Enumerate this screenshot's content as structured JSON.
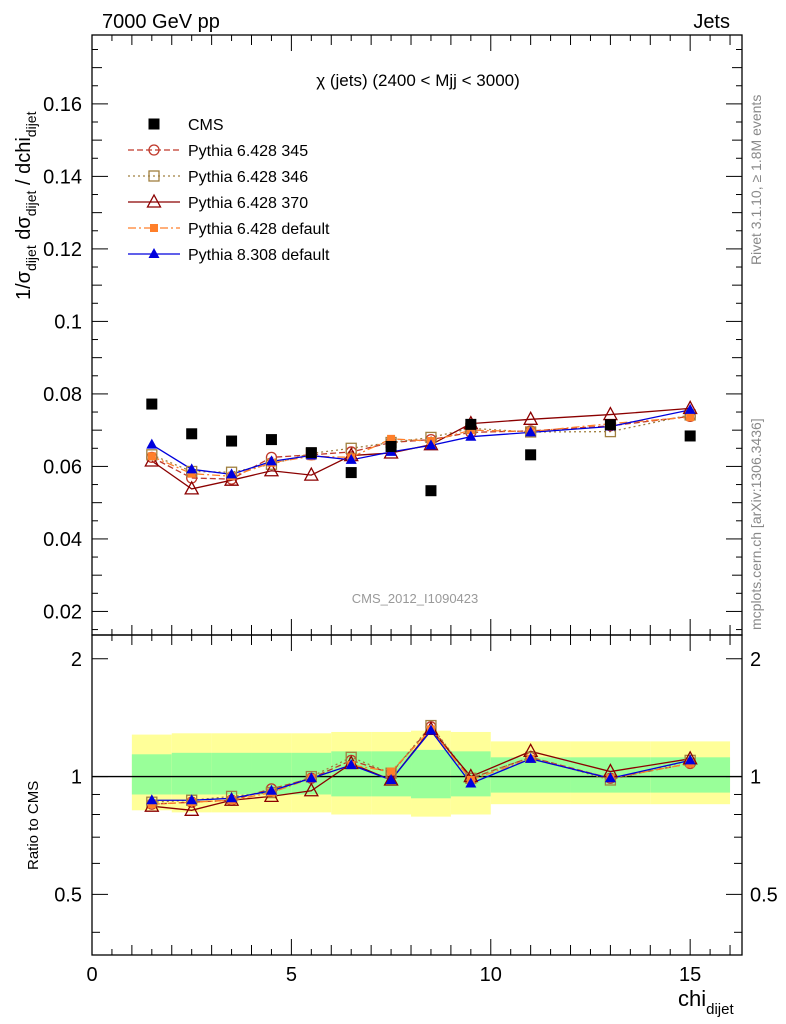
{
  "header": {
    "left": "7000 GeV pp",
    "right": "Jets"
  },
  "side_labels": {
    "rivet": "Rivet 3.1.10, ≥ 1.8M events",
    "mcplots": "mcplots.cern.ch [arXiv:1306.3436]"
  },
  "watermark": "CMS_2012_I1090423",
  "colors": {
    "cms": "#000000",
    "py345": "#c0392b",
    "py346": "#a08040",
    "py370": "#8b0000",
    "pydef": "#ff7f2a",
    "py8": "#0000dd",
    "band_inner": "#99ff99",
    "band_outer": "#ffff99"
  },
  "chart_data": [
    {
      "type": "line",
      "title": "χ (jets) (2400 < Mjj < 3000)",
      "xlabel": "chi",
      "xlabel_sub": "dijet",
      "ylabel": "1/σ_dijet dσ_dijet / dchi_dijet",
      "xlim": [
        0,
        16.3
      ],
      "ylim": [
        0.0135,
        0.179
      ],
      "yticks": [
        "0.02",
        "0.04",
        "0.06",
        "0.08",
        "0.1",
        "0.12",
        "0.14",
        "0.16"
      ],
      "x": [
        1.5,
        2.5,
        3.5,
        4.5,
        5.5,
        6.5,
        7.5,
        8.5,
        9.5,
        11,
        13,
        15
      ],
      "series": [
        {
          "name": "CMS",
          "style": "data",
          "values": [
            0.0772,
            0.069,
            0.067,
            0.0674,
            0.0638,
            0.0583,
            0.0655,
            0.0533,
            0.0716,
            0.0632,
            0.0715,
            0.0684
          ]
        },
        {
          "name": "Pythia 6.428 345",
          "values": [
            0.0625,
            0.0568,
            0.0565,
            0.0625,
            0.0632,
            0.064,
            0.0666,
            0.0674,
            0.0694,
            0.0698,
            0.0712,
            0.0738
          ]
        },
        {
          "name": "Pythia 6.428 346",
          "values": [
            0.0632,
            0.0586,
            0.0584,
            0.0606,
            0.0636,
            0.065,
            0.0666,
            0.068,
            0.0705,
            0.0695,
            0.0696,
            0.0742
          ]
        },
        {
          "name": "Pythia 6.428 370",
          "values": [
            0.0615,
            0.0538,
            0.0562,
            0.0588,
            0.0576,
            0.063,
            0.0637,
            0.066,
            0.0718,
            0.073,
            0.0743,
            0.076
          ]
        },
        {
          "name": "Pythia 6.428 default",
          "values": [
            0.0628,
            0.058,
            0.0573,
            0.061,
            0.0628,
            0.0625,
            0.0676,
            0.067,
            0.07,
            0.0696,
            0.0718,
            0.0736
          ]
        },
        {
          "name": "Pythia 8.308 default",
          "values": [
            0.066,
            0.0592,
            0.0578,
            0.0614,
            0.063,
            0.0618,
            0.064,
            0.0658,
            0.0682,
            0.0694,
            0.071,
            0.0756
          ]
        }
      ]
    },
    {
      "type": "line",
      "ylabel": "Ratio to CMS",
      "xlabel": "chi",
      "xlabel_sub": "dijet",
      "xlim": [
        0,
        16.3
      ],
      "ylim": [
        0.35,
        2.3
      ],
      "log_y": true,
      "yticks": [
        "0.5",
        "1",
        "2"
      ],
      "xticks": [
        "0",
        "5",
        "10",
        "15"
      ],
      "bins": [
        [
          1,
          2
        ],
        [
          2,
          3
        ],
        [
          3,
          4
        ],
        [
          4,
          5
        ],
        [
          5,
          6
        ],
        [
          6,
          7
        ],
        [
          7,
          8
        ],
        [
          8,
          9
        ],
        [
          9,
          10
        ],
        [
          10,
          12
        ],
        [
          12,
          14
        ],
        [
          14,
          16
        ]
      ],
      "band_inner": [
        [
          0.9,
          1.14
        ],
        [
          0.9,
          1.15
        ],
        [
          0.9,
          1.15
        ],
        [
          0.9,
          1.15
        ],
        [
          0.9,
          1.15
        ],
        [
          0.89,
          1.16
        ],
        [
          0.89,
          1.16
        ],
        [
          0.88,
          1.17
        ],
        [
          0.89,
          1.16
        ],
        [
          0.91,
          1.12
        ],
        [
          0.91,
          1.12
        ],
        [
          0.91,
          1.12
        ]
      ],
      "band_outer": [
        [
          0.82,
          1.28
        ],
        [
          0.81,
          1.29
        ],
        [
          0.81,
          1.29
        ],
        [
          0.81,
          1.29
        ],
        [
          0.81,
          1.29
        ],
        [
          0.8,
          1.3
        ],
        [
          0.8,
          1.3
        ],
        [
          0.79,
          1.31
        ],
        [
          0.8,
          1.3
        ],
        [
          0.85,
          1.23
        ],
        [
          0.85,
          1.23
        ],
        [
          0.85,
          1.23
        ]
      ],
      "x": [
        1.5,
        2.5,
        3.5,
        4.5,
        5.5,
        6.5,
        7.5,
        8.5,
        9.5,
        11,
        13,
        15
      ],
      "series": [
        {
          "name": "Pythia 6.428 345",
          "values": [
            0.85,
            0.86,
            0.87,
            0.93,
            0.99,
            1.1,
            1.02,
            1.34,
            0.99,
            1.12,
            0.99,
            1.08
          ]
        },
        {
          "name": "Pythia 6.428 346",
          "values": [
            0.86,
            0.87,
            0.89,
            0.91,
            1.0,
            1.12,
            1.02,
            1.35,
            0.99,
            1.12,
            0.98,
            1.1
          ]
        },
        {
          "name": "Pythia 6.428 370",
          "values": [
            0.84,
            0.82,
            0.87,
            0.89,
            0.92,
            1.08,
            0.98,
            1.32,
            1.0,
            1.16,
            1.03,
            1.11
          ]
        },
        {
          "name": "Pythia 6.428 default",
          "values": [
            0.85,
            0.86,
            0.87,
            0.91,
            0.99,
            1.07,
            1.03,
            1.32,
            0.98,
            1.11,
            0.99,
            1.08
          ]
        },
        {
          "name": "Pythia 8.308 default",
          "values": [
            0.87,
            0.87,
            0.88,
            0.92,
            0.99,
            1.07,
            0.98,
            1.31,
            0.96,
            1.11,
            0.99,
            1.1
          ]
        }
      ]
    }
  ]
}
